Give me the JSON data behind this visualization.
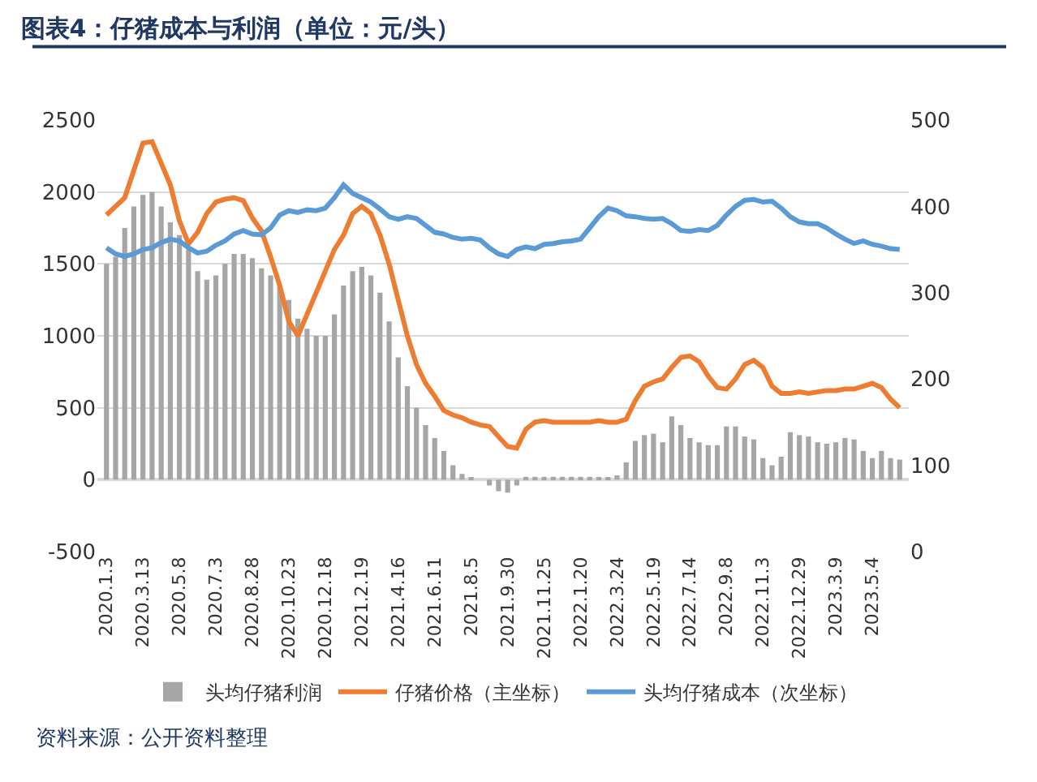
{
  "chart_data": {
    "type": "bar",
    "title": "图表4：仔猪成本与利润（单位：元/头）",
    "categories": [
      "2020.1.3",
      null,
      null,
      null,
      "2020.3.13",
      null,
      null,
      null,
      "2020.5.8",
      null,
      null,
      null,
      "2020.7.3",
      null,
      null,
      null,
      "2020.8.28",
      null,
      null,
      null,
      "2020.10.23",
      null,
      null,
      null,
      "2020.12.18",
      null,
      null,
      null,
      "2021.2.19",
      null,
      null,
      null,
      "2021.4.16",
      null,
      null,
      null,
      "2021.6.11",
      null,
      null,
      null,
      "2021.8.5",
      null,
      null,
      null,
      "2021.9.30",
      null,
      null,
      null,
      "2021.11.25",
      null,
      null,
      null,
      "2022.1.20",
      null,
      null,
      null,
      "2022.3.24",
      null,
      null,
      null,
      "2022.5.19",
      null,
      null,
      null,
      "2022.7.14",
      null,
      null,
      null,
      "2022.9.8",
      null,
      null,
      null,
      "2022.11.3",
      null,
      null,
      null,
      "2022.12.29",
      null,
      null,
      null,
      "2023.3.9",
      null,
      null,
      null,
      "2023.5.4",
      null,
      null,
      null
    ],
    "series": [
      {
        "name": "头均仔猪利润",
        "color": "#a6a6a6",
        "values": [
          1500,
          1550,
          1750,
          1900,
          1980,
          2000,
          1900,
          1790,
          1700,
          1600,
          1450,
          1390,
          1420,
          1500,
          1570,
          1570,
          1540,
          1470,
          1420,
          1350,
          1250,
          1120,
          1050,
          1000,
          1000,
          1150,
          1350,
          1450,
          1480,
          1420,
          1300,
          1100,
          850,
          650,
          500,
          380,
          290,
          200,
          100,
          40,
          10,
          0,
          -40,
          -80,
          -90,
          -40,
          20,
          20,
          20,
          20,
          20,
          20,
          20,
          20,
          10,
          10,
          30,
          120,
          270,
          310,
          320,
          260,
          440,
          380,
          290,
          260,
          240,
          240,
          370,
          370,
          300,
          280,
          150,
          100,
          160,
          330,
          310,
          300,
          260,
          250,
          260,
          290,
          280,
          200,
          150,
          200,
          150,
          140
        ]
      },
      {
        "name": "仔猪价格（主坐标）",
        "type": "line",
        "color": "#ed7d31",
        "values": [
          1840,
          1900,
          1960,
          2150,
          2340,
          2350,
          2200,
          2050,
          1800,
          1640,
          1720,
          1850,
          1930,
          1950,
          1960,
          1940,
          1820,
          1730,
          1550,
          1350,
          1100,
          1000,
          1150,
          1300,
          1450,
          1600,
          1700,
          1850,
          1900,
          1850,
          1700,
          1500,
          1250,
          1000,
          800,
          670,
          580,
          480,
          450,
          430,
          400,
          380,
          370,
          300,
          230,
          220,
          350,
          400,
          410,
          400,
          400,
          400,
          400,
          400,
          410,
          400,
          400,
          420,
          550,
          650,
          680,
          700,
          780,
          850,
          860,
          820,
          720,
          640,
          630,
          700,
          800,
          830,
          780,
          650,
          600,
          600,
          610,
          600,
          610,
          620,
          620,
          630,
          630,
          650,
          670,
          640,
          560,
          500
        ]
      },
      {
        "name": "头均仔猪成本（次坐标）",
        "type": "line",
        "axis": "y2",
        "color": "#5b9bd5",
        "values": [
          352,
          345,
          342,
          345,
          350,
          352,
          358,
          362,
          360,
          352,
          346,
          348,
          355,
          360,
          368,
          372,
          368,
          367,
          375,
          390,
          395,
          393,
          396,
          395,
          398,
          410,
          425,
          415,
          410,
          405,
          397,
          388,
          385,
          388,
          386,
          378,
          370,
          368,
          364,
          362,
          363,
          361,
          352,
          345,
          342,
          350,
          353,
          351,
          356,
          357,
          359,
          360,
          362,
          375,
          388,
          398,
          395,
          389,
          388,
          386,
          385,
          386,
          380,
          372,
          371,
          373,
          372,
          378,
          390,
          400,
          407,
          408,
          405,
          406,
          398,
          388,
          382,
          380,
          380,
          375,
          368,
          362,
          357,
          360,
          356,
          354,
          351,
          350
        ]
      }
    ],
    "ylim": [
      -500,
      2500
    ],
    "yticks": [
      -500,
      0,
      500,
      1000,
      1500,
      2000,
      2500
    ],
    "y2lim": [
      0,
      500
    ],
    "y2ticks": [
      0,
      100,
      200,
      300,
      400,
      500
    ],
    "grid": "y",
    "legend": "bottom",
    "line_style": "solid",
    "marker": "none",
    "annotations": [
      "资料来源：公开资料整理"
    ]
  }
}
